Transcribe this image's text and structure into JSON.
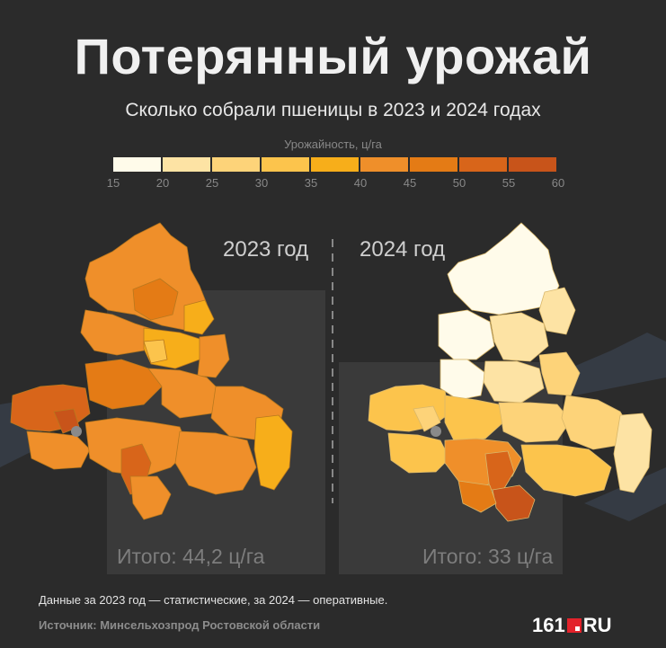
{
  "header": {
    "title": "Потерянный урожай",
    "subtitle": "Сколько собрали пшеницы в 2023 и 2024 годах"
  },
  "legend": {
    "title": "Урожайность, ц/га",
    "ticks": [
      "15",
      "20",
      "25",
      "30",
      "35",
      "40",
      "45",
      "50",
      "55",
      "60"
    ],
    "colors": [
      "#fffbea",
      "#fde3a4",
      "#fdd379",
      "#fcc44c",
      "#f7ae1a",
      "#ef8f2a",
      "#e47b15",
      "#d8651a",
      "#c8541a"
    ]
  },
  "maps": {
    "left": {
      "year": "2023 год",
      "total": "Итого: 44,2 ц/га"
    },
    "right": {
      "year": "2024 год",
      "total": "Итого: 33 ц/га"
    }
  },
  "footer": {
    "note": "Данные за 2023 год — статистические, за 2024 — оперативные.",
    "source": "Источник: Минсельхозпрод Ростовской области",
    "logo_left": "161",
    "logo_right": "RU"
  }
}
